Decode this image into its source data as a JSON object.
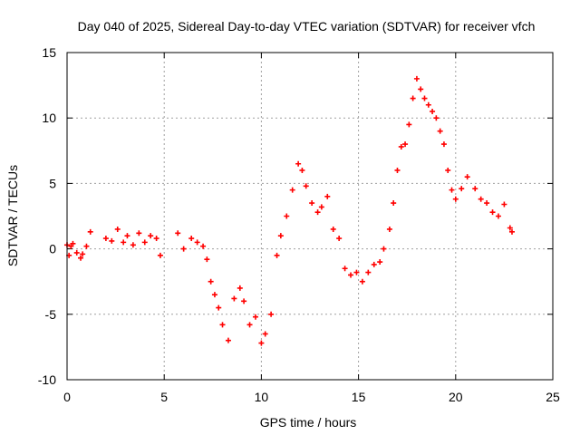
{
  "chart_data": {
    "type": "scatter",
    "title": "Day 040 of 2025, Sidereal Day-to-day VTEC variation (SDTVAR) for receiver vfch",
    "xlabel": "GPS time / hours",
    "ylabel": "SDTVAR / TECUs",
    "xlim": [
      0,
      25
    ],
    "ylim": [
      -10,
      15
    ],
    "xticks": [
      0,
      5,
      10,
      15,
      20,
      25
    ],
    "yticks": [
      -10,
      -5,
      0,
      5,
      10,
      15
    ],
    "grid": true,
    "marker": "+",
    "color": "#ff0000",
    "series": [
      {
        "name": "SDTVAR",
        "x": [
          0.0,
          0.1,
          0.2,
          0.3,
          0.5,
          0.7,
          0.8,
          1.0,
          1.2,
          2.0,
          2.3,
          2.6,
          2.9,
          3.1,
          3.4,
          3.7,
          4.0,
          4.3,
          4.6,
          4.8,
          5.7,
          6.0,
          6.4,
          6.7,
          7.0,
          7.2,
          7.4,
          7.6,
          7.8,
          8.0,
          8.3,
          8.6,
          8.9,
          9.1,
          9.4,
          9.7,
          10.0,
          10.2,
          10.5,
          10.8,
          11.0,
          11.3,
          11.6,
          11.9,
          12.1,
          12.3,
          12.6,
          12.9,
          13.1,
          13.4,
          13.7,
          14.0,
          14.3,
          14.6,
          14.9,
          15.2,
          15.5,
          15.8,
          16.1,
          16.3,
          16.6,
          16.8,
          17.0,
          17.2,
          17.4,
          17.6,
          17.8,
          18.0,
          18.2,
          18.4,
          18.6,
          18.8,
          19.0,
          19.2,
          19.4,
          19.6,
          19.8,
          20.0,
          20.3,
          20.6,
          21.0,
          21.3,
          21.6,
          21.9,
          22.2,
          22.5,
          22.8,
          22.9
        ],
        "y": [
          0.3,
          -0.5,
          0.2,
          0.4,
          -0.3,
          -0.7,
          -0.4,
          0.2,
          1.3,
          0.8,
          0.6,
          1.5,
          0.5,
          1.0,
          0.3,
          1.2,
          0.5,
          1.0,
          0.8,
          -0.5,
          1.2,
          0.0,
          0.8,
          0.5,
          0.2,
          -0.8,
          -2.5,
          -3.5,
          -4.5,
          -5.8,
          -7.0,
          -3.8,
          -3.0,
          -4.0,
          -5.8,
          -5.2,
          -7.2,
          -6.5,
          -5.0,
          -0.5,
          1.0,
          2.5,
          4.5,
          6.5,
          6.0,
          4.8,
          3.5,
          2.8,
          3.2,
          4.0,
          1.5,
          0.8,
          -1.5,
          -2.0,
          -1.8,
          -2.5,
          -1.8,
          -1.2,
          -1.0,
          0.0,
          1.5,
          3.5,
          6.0,
          7.8,
          8.0,
          9.5,
          11.5,
          13.0,
          12.2,
          11.5,
          11.0,
          10.5,
          10.0,
          9.0,
          8.0,
          6.0,
          4.5,
          3.8,
          4.6,
          5.5,
          4.6,
          3.8,
          3.5,
          2.8,
          2.5,
          3.4,
          1.6,
          1.3
        ]
      }
    ]
  }
}
